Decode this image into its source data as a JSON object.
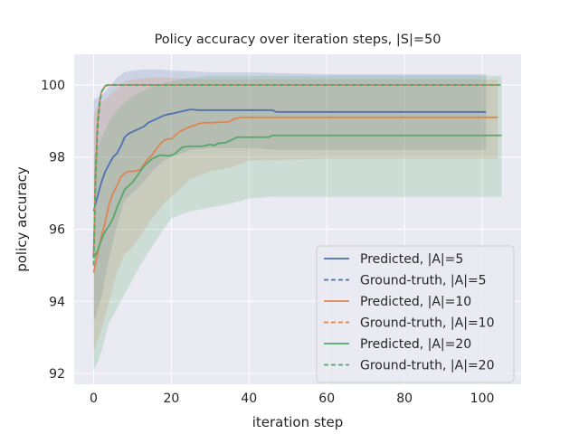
{
  "chart_data": {
    "type": "line",
    "title": "Policy accuracy over iteration steps, |S|=50",
    "xlabel": "iteration step",
    "ylabel": "policy accuracy",
    "xlim": [
      -5,
      110
    ],
    "ylim": [
      91.7,
      100.85
    ],
    "xticks": [
      0,
      20,
      40,
      60,
      80,
      100
    ],
    "yticks": [
      92,
      94,
      96,
      98,
      100
    ],
    "grid": true,
    "legend_position": "lower-right",
    "series": [
      {
        "name": "Predicted, |A|=5",
        "color": "#4c72b0",
        "dashed": false,
        "points": [
          [
            0,
            96.5
          ],
          [
            1,
            96.9
          ],
          [
            2,
            97.3
          ],
          [
            3,
            97.6
          ],
          [
            4,
            97.8
          ],
          [
            5,
            98.0
          ],
          [
            6,
            98.1
          ],
          [
            7,
            98.3
          ],
          [
            8,
            98.55
          ],
          [
            9,
            98.65
          ],
          [
            10,
            98.7
          ],
          [
            11,
            98.75
          ],
          [
            12,
            98.8
          ],
          [
            13,
            98.85
          ],
          [
            14,
            98.95
          ],
          [
            15,
            99.0
          ],
          [
            16,
            99.05
          ],
          [
            17,
            99.1
          ],
          [
            18,
            99.15
          ],
          [
            19,
            99.18
          ],
          [
            20,
            99.2
          ],
          [
            22,
            99.25
          ],
          [
            24,
            99.3
          ],
          [
            25,
            99.32
          ],
          [
            27,
            99.3
          ],
          [
            30,
            99.3
          ],
          [
            40,
            99.3
          ],
          [
            46,
            99.3
          ],
          [
            47,
            99.25
          ],
          [
            60,
            99.25
          ],
          [
            80,
            99.25
          ],
          [
            101,
            99.25
          ]
        ],
        "band_upper": [
          [
            0,
            99.6
          ],
          [
            2,
            99.7
          ],
          [
            4,
            99.95
          ],
          [
            6,
            100.2
          ],
          [
            8,
            100.35
          ],
          [
            10,
            100.4
          ],
          [
            12,
            100.42
          ],
          [
            15,
            100.43
          ],
          [
            18,
            100.42
          ],
          [
            20,
            100.4
          ],
          [
            25,
            100.38
          ],
          [
            30,
            100.35
          ],
          [
            40,
            100.35
          ],
          [
            47,
            100.33
          ],
          [
            60,
            100.3
          ],
          [
            80,
            100.3
          ],
          [
            101,
            100.3
          ]
        ],
        "band_lower": [
          [
            0,
            93.4
          ],
          [
            2,
            94.1
          ],
          [
            4,
            95.2
          ],
          [
            6,
            96.1
          ],
          [
            8,
            96.8
          ],
          [
            10,
            97.0
          ],
          [
            12,
            97.2
          ],
          [
            15,
            97.6
          ],
          [
            18,
            97.9
          ],
          [
            20,
            98.0
          ],
          [
            25,
            98.2
          ],
          [
            30,
            98.25
          ],
          [
            40,
            98.25
          ],
          [
            47,
            98.2
          ],
          [
            60,
            98.2
          ],
          [
            80,
            98.2
          ],
          [
            101,
            98.2
          ]
        ]
      },
      {
        "name": "Ground-truth, |A|=5",
        "color": "#4c72b0",
        "dashed": true,
        "points": [
          [
            0,
            95.2
          ],
          [
            0.5,
            97.5
          ],
          [
            1,
            98.9
          ],
          [
            1.5,
            99.5
          ],
          [
            2,
            99.8
          ],
          [
            3,
            99.98
          ],
          [
            4,
            100.0
          ],
          [
            101,
            100.0
          ]
        ],
        "band_upper": [],
        "band_lower": []
      },
      {
        "name": "Predicted, |A|=10",
        "color": "#dd8452",
        "dashed": false,
        "points": [
          [
            0,
            94.8
          ],
          [
            1,
            95.3
          ],
          [
            2,
            95.8
          ],
          [
            3,
            96.2
          ],
          [
            4,
            96.7
          ],
          [
            5,
            97.0
          ],
          [
            6,
            97.2
          ],
          [
            7,
            97.45
          ],
          [
            8,
            97.55
          ],
          [
            9,
            97.6
          ],
          [
            10,
            97.6
          ],
          [
            11,
            97.62
          ],
          [
            12,
            97.65
          ],
          [
            13,
            97.8
          ],
          [
            14,
            97.95
          ],
          [
            15,
            98.05
          ],
          [
            16,
            98.2
          ],
          [
            17,
            98.35
          ],
          [
            18,
            98.45
          ],
          [
            19,
            98.5
          ],
          [
            20,
            98.5
          ],
          [
            21,
            98.6
          ],
          [
            22,
            98.7
          ],
          [
            23,
            98.75
          ],
          [
            24,
            98.8
          ],
          [
            25,
            98.85
          ],
          [
            26,
            98.88
          ],
          [
            27,
            98.92
          ],
          [
            28,
            98.95
          ],
          [
            30,
            98.95
          ],
          [
            35,
            98.98
          ],
          [
            36,
            99.05
          ],
          [
            38,
            99.1
          ],
          [
            40,
            99.1
          ],
          [
            60,
            99.1
          ],
          [
            80,
            99.1
          ],
          [
            104,
            99.1
          ]
        ],
        "band_upper": [
          [
            0,
            99.2
          ],
          [
            2,
            99.5
          ],
          [
            4,
            99.7
          ],
          [
            6,
            99.9
          ],
          [
            8,
            100.1
          ],
          [
            10,
            100.15
          ],
          [
            15,
            100.2
          ],
          [
            20,
            100.2
          ],
          [
            25,
            100.15
          ],
          [
            30,
            100.15
          ],
          [
            40,
            100.15
          ],
          [
            60,
            100.15
          ],
          [
            80,
            100.15
          ],
          [
            104,
            100.15
          ]
        ],
        "band_lower": [
          [
            0,
            92.6
          ],
          [
            2,
            93.2
          ],
          [
            4,
            94.0
          ],
          [
            6,
            94.8
          ],
          [
            8,
            95.3
          ],
          [
            10,
            95.5
          ],
          [
            12,
            95.8
          ],
          [
            15,
            96.3
          ],
          [
            18,
            96.7
          ],
          [
            20,
            96.9
          ],
          [
            25,
            97.4
          ],
          [
            30,
            97.6
          ],
          [
            35,
            97.7
          ],
          [
            40,
            97.9
          ],
          [
            60,
            97.95
          ],
          [
            80,
            97.95
          ],
          [
            104,
            97.95
          ]
        ]
      },
      {
        "name": "Ground-truth, |A|=10",
        "color": "#dd8452",
        "dashed": true,
        "points": [
          [
            0,
            95.3
          ],
          [
            0.5,
            97.6
          ],
          [
            1,
            98.9
          ],
          [
            1.5,
            99.5
          ],
          [
            2,
            99.8
          ],
          [
            3,
            99.97
          ],
          [
            4,
            100.0
          ],
          [
            104,
            100.0
          ]
        ],
        "band_upper": [],
        "band_lower": []
      },
      {
        "name": "Predicted, |A|=20",
        "color": "#55a868",
        "dashed": false,
        "points": [
          [
            0,
            95.2
          ],
          [
            1,
            95.4
          ],
          [
            2,
            95.7
          ],
          [
            3,
            95.95
          ],
          [
            4,
            96.1
          ],
          [
            5,
            96.3
          ],
          [
            6,
            96.6
          ],
          [
            7,
            96.85
          ],
          [
            8,
            97.1
          ],
          [
            9,
            97.2
          ],
          [
            10,
            97.3
          ],
          [
            11,
            97.45
          ],
          [
            12,
            97.6
          ],
          [
            13,
            97.75
          ],
          [
            14,
            97.85
          ],
          [
            15,
            97.95
          ],
          [
            16,
            98.0
          ],
          [
            17,
            98.05
          ],
          [
            18,
            98.05
          ],
          [
            19,
            98.03
          ],
          [
            20,
            98.05
          ],
          [
            21,
            98.1
          ],
          [
            22,
            98.2
          ],
          [
            23,
            98.28
          ],
          [
            25,
            98.3
          ],
          [
            28,
            98.3
          ],
          [
            30,
            98.35
          ],
          [
            31,
            98.32
          ],
          [
            32,
            98.38
          ],
          [
            34,
            98.4
          ],
          [
            35,
            98.45
          ],
          [
            36,
            98.5
          ],
          [
            37,
            98.55
          ],
          [
            40,
            98.55
          ],
          [
            45,
            98.55
          ],
          [
            46,
            98.6
          ],
          [
            60,
            98.6
          ],
          [
            80,
            98.6
          ],
          [
            105,
            98.6
          ]
        ],
        "band_upper": [
          [
            0,
            98.0
          ],
          [
            2,
            98.5
          ],
          [
            4,
            99.0
          ],
          [
            6,
            99.3
          ],
          [
            8,
            99.5
          ],
          [
            10,
            99.7
          ],
          [
            15,
            99.95
          ],
          [
            20,
            100.1
          ],
          [
            25,
            100.2
          ],
          [
            30,
            100.25
          ],
          [
            40,
            100.25
          ],
          [
            60,
            100.25
          ],
          [
            80,
            100.25
          ],
          [
            105,
            100.25
          ]
        ],
        "band_lower": [
          [
            0,
            92.1
          ],
          [
            1,
            92.3
          ],
          [
            2,
            92.6
          ],
          [
            3,
            93.0
          ],
          [
            4,
            93.4
          ],
          [
            6,
            93.8
          ],
          [
            8,
            94.2
          ],
          [
            10,
            94.6
          ],
          [
            12,
            95.0
          ],
          [
            15,
            95.5
          ],
          [
            18,
            96.0
          ],
          [
            20,
            96.3
          ],
          [
            25,
            96.5
          ],
          [
            30,
            96.6
          ],
          [
            35,
            96.7
          ],
          [
            40,
            96.85
          ],
          [
            46,
            96.9
          ],
          [
            60,
            96.9
          ],
          [
            80,
            96.9
          ],
          [
            105,
            96.9
          ]
        ]
      },
      {
        "name": "Ground-truth, |A|=20",
        "color": "#55a868",
        "dashed": true,
        "points": [
          [
            0,
            95.0
          ],
          [
            0.5,
            97.3
          ],
          [
            1,
            98.7
          ],
          [
            1.5,
            99.4
          ],
          [
            2,
            99.8
          ],
          [
            3,
            99.97
          ],
          [
            4,
            100.0
          ],
          [
            105,
            100.0
          ]
        ],
        "band_upper": [],
        "band_lower": []
      }
    ]
  }
}
